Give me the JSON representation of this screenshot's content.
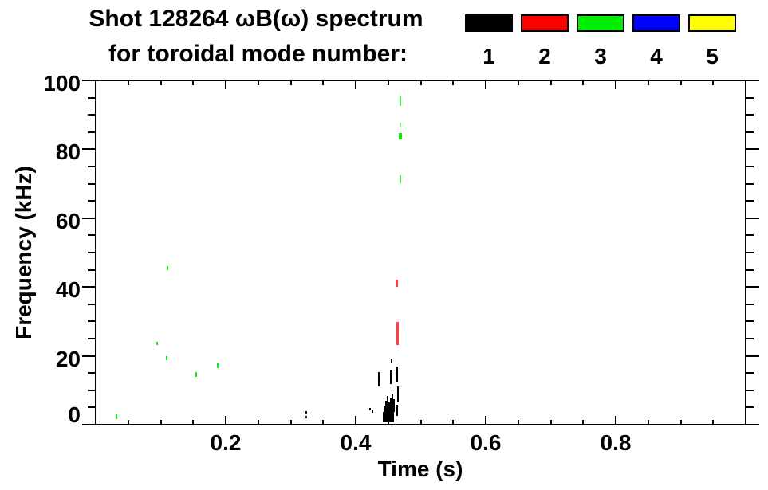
{
  "title": {
    "line1": "Shot 128264 ωB(ω) spectrum",
    "line2": "for toroidal mode number:"
  },
  "legend": {
    "modes": [
      {
        "label": "1",
        "color": "#000000"
      },
      {
        "label": "2",
        "color": "#ff0000"
      },
      {
        "label": "3",
        "color": "#00ee00"
      },
      {
        "label": "4",
        "color": "#0000ff"
      },
      {
        "label": "5",
        "color": "#ffff00"
      }
    ]
  },
  "chart_data": {
    "type": "scatter",
    "title": "Shot 128264 ωB(ω) spectrum for toroidal mode number: 1 2 3 4 5",
    "xlabel": "Time (s)",
    "ylabel": "Frequency (kHz)",
    "xlim": [
      0,
      1.0
    ],
    "ylim": [
      0,
      100
    ],
    "x_major_ticks": [
      0.2,
      0.4,
      0.6,
      0.8
    ],
    "x_tick_labels": [
      "0.2",
      "0.4",
      "0.6",
      "0.8"
    ],
    "x_minor_step": 0.05,
    "y_major_ticks": [
      0,
      20,
      40,
      60,
      80,
      100
    ],
    "y_tick_labels": [
      "0",
      "20",
      "40",
      "60",
      "80",
      "100"
    ],
    "y_minor_step": 5,
    "grid": false,
    "legend_position": "top-right",
    "background": "#ffffff",
    "series": [
      {
        "name": "mode 1",
        "mode": 1,
        "color": "#000000",
        "points": [
          {
            "t": 0.3227,
            "f": [
              3.2,
              3.9
            ]
          },
          {
            "t": 0.3227,
            "f": [
              1.9,
              2.5
            ]
          },
          {
            "t": 0.4209,
            "f": [
              4.2,
              4.9
            ]
          },
          {
            "t": 0.4246,
            "f": [
              3.5,
              4.2
            ]
          },
          {
            "t": 0.4344,
            "f": [
              11.1,
              15.3
            ]
          },
          {
            "t": 0.4417,
            "f": [
              0.7,
              3.7
            ],
            "w": 14
          },
          {
            "t": 0.4429,
            "f": [
              3.7,
              5.6
            ]
          },
          {
            "t": 0.4454,
            "f": [
              3.7,
              6.9
            ]
          },
          {
            "t": 0.4479,
            "f": [
              3.7,
              8.3
            ]
          },
          {
            "t": 0.4503,
            "f": [
              3.7,
              6.5
            ]
          },
          {
            "t": 0.4528,
            "f": [
              3.7,
              7.9
            ]
          },
          {
            "t": 0.4552,
            "f": [
              3.7,
              8.8
            ]
          },
          {
            "t": 0.4577,
            "f": [
              3.7,
              7.4
            ]
          },
          {
            "t": 0.4528,
            "f": [
              11.8,
              15.7
            ]
          },
          {
            "t": 0.454,
            "f": [
              17.8,
              19.2
            ]
          },
          {
            "t": 0.4626,
            "f": [
              12.3,
              16.9
            ]
          },
          {
            "t": 0.4638,
            "f": [
              6.5,
              11.1
            ]
          },
          {
            "t": 0.4626,
            "f": [
              2.5,
              5.8
            ]
          }
        ]
      },
      {
        "name": "mode 2",
        "mode": 2,
        "color": "#ff0000",
        "points": [
          {
            "t": 0.4613,
            "f": [
              40.0,
              42.1
            ],
            "w": 3,
            "a": 0.75
          },
          {
            "t": 0.4626,
            "f": [
              23.1,
              29.9
            ],
            "w": 3,
            "a": 0.75
          }
        ]
      },
      {
        "name": "mode 3",
        "mode": 3,
        "color": "#00ee00",
        "points": [
          {
            "t": 0.0307,
            "f": [
              1.6,
              3.0
            ]
          },
          {
            "t": 0.0933,
            "f": [
              23.1,
              24.1
            ]
          },
          {
            "t": 0.108,
            "f": [
              18.8,
              19.9
            ]
          },
          {
            "t": 0.1092,
            "f": [
              44.9,
              46.1
            ]
          },
          {
            "t": 0.1534,
            "f": [
              13.9,
              15.3
            ]
          },
          {
            "t": 0.1865,
            "f": [
              16.4,
              17.8
            ]
          },
          {
            "t": 0.4675,
            "f": [
              92.6,
              95.6
            ],
            "a": 0.7
          },
          {
            "t": 0.4675,
            "f": [
              86.3,
              87.7
            ],
            "a": 0.5
          },
          {
            "t": 0.4663,
            "f": [
              82.9,
              84.7
            ],
            "w": 4
          },
          {
            "t": 0.4675,
            "f": [
              70.1,
              72.5
            ],
            "a": 0.7
          }
        ]
      },
      {
        "name": "mode 4",
        "mode": 4,
        "color": "#0000ff",
        "points": []
      },
      {
        "name": "mode 5",
        "mode": 5,
        "color": "#ffff00",
        "points": []
      }
    ]
  }
}
